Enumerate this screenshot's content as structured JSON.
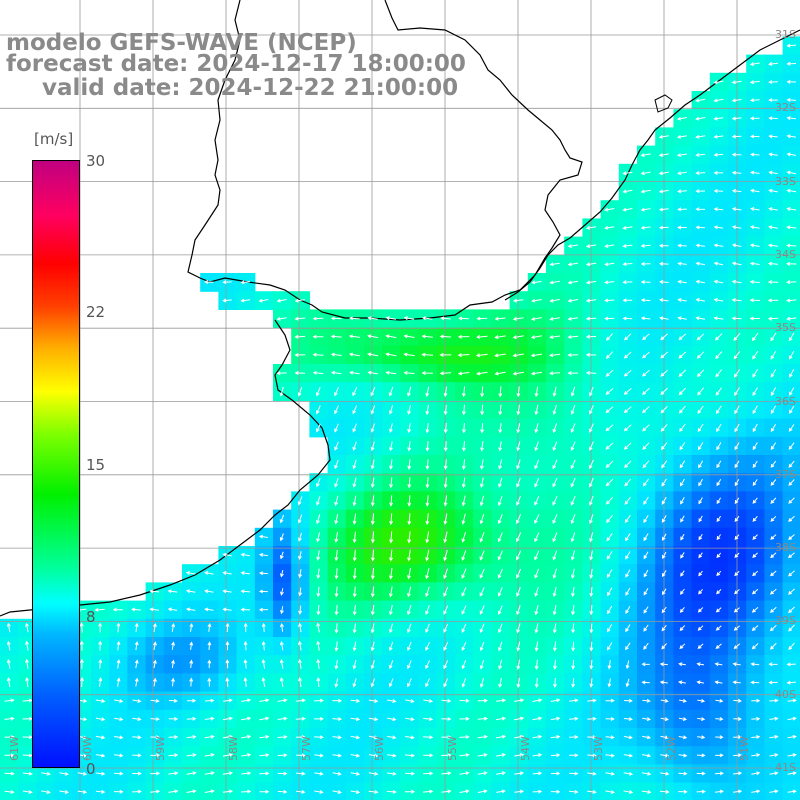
{
  "title": {
    "model": "modelo GEFS-WAVE (NCEP)",
    "forecast": "forecast date: 2024-12-17 18:00:00",
    "valid": "valid date: 2024-12-22 21:00:00"
  },
  "colorbar": {
    "unit": "[m/s]",
    "ticks": [
      "30",
      "22",
      "15",
      "8",
      "0"
    ],
    "range": [
      0,
      30
    ]
  },
  "grid_labels": {
    "lat": [
      "31S",
      "32S",
      "33S",
      "34S",
      "35S",
      "36S",
      "37S",
      "38S",
      "39S",
      "40S",
      "41S"
    ],
    "lon": [
      "61W",
      "60W",
      "59W",
      "58W",
      "57W",
      "56W",
      "55W",
      "54W",
      "53W",
      "52W",
      "51W"
    ]
  },
  "colors": {
    "land": "#ffffff",
    "grid": "#999999",
    "coast": "#000000",
    "arrows": "#ffffff",
    "title": "#8a8a8a"
  }
}
